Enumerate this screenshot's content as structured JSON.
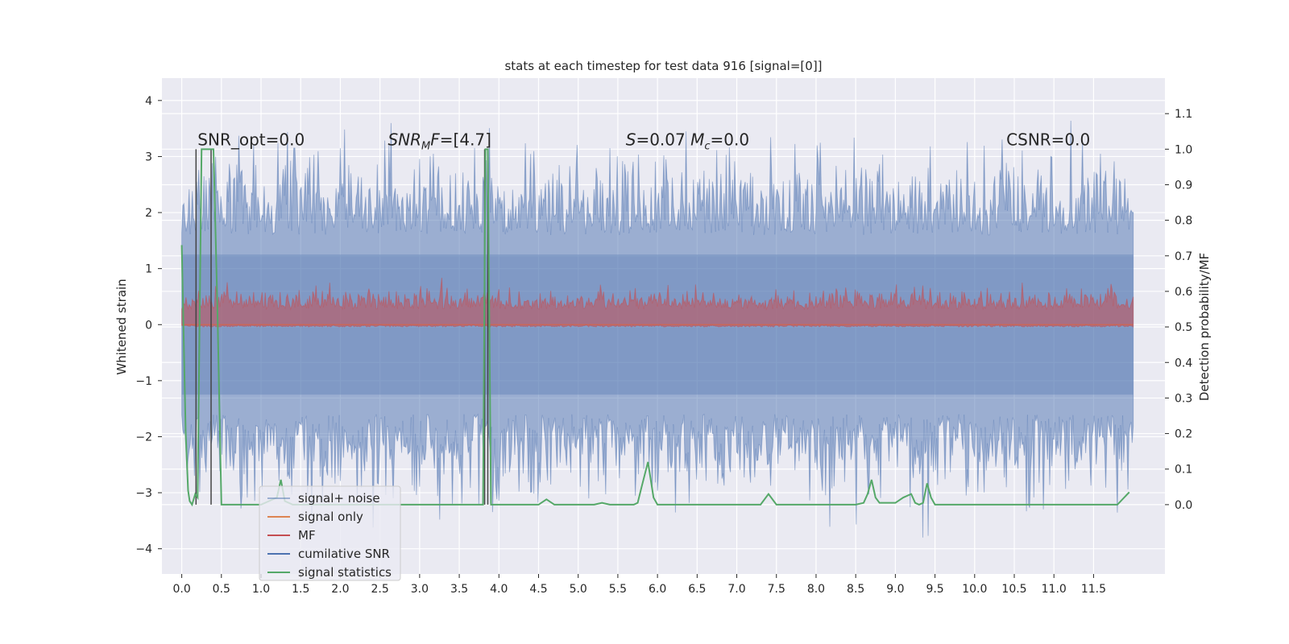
{
  "chart_data": {
    "type": "line",
    "title": "stats at each timestep for test data 916 [signal=[0]]",
    "ylabel": "Whitened strain",
    "y2label": "Detection probability/MF",
    "xlim": [
      -0.25,
      12.4
    ],
    "ylim": [
      -4.45,
      4.4
    ],
    "y2lim": [
      -0.195,
      1.2
    ],
    "xticks": [
      "0.0",
      "0.5",
      "1.0",
      "1.5",
      "2.0",
      "2.5",
      "3.0",
      "3.5",
      "4.0",
      "4.5",
      "5.0",
      "5.5",
      "6.0",
      "6.5",
      "7.0",
      "7.5",
      "8.0",
      "8.5",
      "9.0",
      "9.5",
      "10.0",
      "10.5",
      "11.0",
      "11.5"
    ],
    "yticks": [
      "−4",
      "−3",
      "−2",
      "−1",
      "0",
      "1",
      "2",
      "3",
      "4"
    ],
    "y2ticks": [
      "0.0",
      "0.1",
      "0.2",
      "0.3",
      "0.4",
      "0.5",
      "0.6",
      "0.7",
      "0.8",
      "0.9",
      "1.0",
      "1.1"
    ],
    "grid": true,
    "legend_position": "lower-left",
    "background": "#eaeaf2",
    "annotations": [
      {
        "text": "SNR_opt=0.0",
        "x": 0.2,
        "y": 3.2
      },
      {
        "text": "SNR_MF=[4.7]",
        "x": 2.6,
        "y": 3.2
      },
      {
        "text": "S=0.07   M_c=0.0",
        "x": 5.6,
        "y": 3.2
      },
      {
        "text": "CSNR=0.0",
        "x": 10.4,
        "y": 3.2
      }
    ],
    "series": [
      {
        "name": "signal+ noise",
        "color": "#4c72b0",
        "envelope": {
          "x_start": 0.0,
          "x_end": 12.0,
          "typical_high": 1.3,
          "typical_low": -1.3,
          "max_peak": 4.0,
          "min_peak": -3.8
        }
      },
      {
        "name": "signal only",
        "color": "#dd8452",
        "values_note": "0"
      },
      {
        "name": "MF",
        "color": "#c44e52",
        "axis": "right",
        "envelope": {
          "typical_low": 0.5,
          "typical_high": 0.58,
          "max_peak": 0.67
        }
      },
      {
        "name": "cumilative SNR",
        "color": "#4c72b0",
        "values_note": "not visible"
      },
      {
        "name": "signal statistics",
        "color": "#55a868",
        "axis": "right",
        "x": [
          0.0,
          0.05,
          0.08,
          0.1,
          0.13,
          0.17,
          0.2,
          0.25,
          0.3,
          0.4,
          0.45,
          0.5,
          0.55,
          0.6,
          0.7,
          0.8,
          0.9,
          1.0,
          1.1,
          1.2,
          1.25,
          1.3,
          1.4,
          1.5,
          2.0,
          2.5,
          3.0,
          3.2,
          3.3,
          3.5,
          3.8,
          3.83,
          3.86,
          3.9,
          4.0,
          4.5,
          4.6,
          4.7,
          5.0,
          5.2,
          5.3,
          5.4,
          5.6,
          5.7,
          5.75,
          5.8,
          5.88,
          5.95,
          6.0,
          6.5,
          7.0,
          7.3,
          7.4,
          7.5,
          7.6,
          8.0,
          8.5,
          8.6,
          8.65,
          8.7,
          8.75,
          8.8,
          9.0,
          9.1,
          9.2,
          9.25,
          9.3,
          9.35,
          9.4,
          9.45,
          9.5,
          9.55,
          10.0,
          10.5,
          11.0,
          11.5,
          11.8,
          11.95
        ],
        "y": [
          0.73,
          0.2,
          0.04,
          0.01,
          0.0,
          0.03,
          0.02,
          1.0,
          1.0,
          1.0,
          0.55,
          0.0,
          0.0,
          0.0,
          0.0,
          0.0,
          0.0,
          0.0,
          0.01,
          0.02,
          0.07,
          0.01,
          0.0,
          0.0,
          0.0,
          0.0,
          0.0,
          0.0,
          0.0,
          0.0,
          0.0,
          1.0,
          1.0,
          0.0,
          0.0,
          0.0,
          0.015,
          0.0,
          0.0,
          0.0,
          0.005,
          0.0,
          0.0,
          0.0,
          0.005,
          0.05,
          0.12,
          0.02,
          0.0,
          0.0,
          0.0,
          0.0,
          0.03,
          0.0,
          0.0,
          0.0,
          0.0,
          0.005,
          0.03,
          0.07,
          0.02,
          0.005,
          0.005,
          0.02,
          0.03,
          0.005,
          0.0,
          0.005,
          0.06,
          0.02,
          0.0,
          0.0,
          0.0,
          0.0,
          0.0,
          0.0,
          0.0,
          0.035
        ]
      },
      {
        "name": "vertical markers",
        "color": "#444444",
        "x": [
          0.18,
          0.37,
          3.82,
          3.86
        ]
      }
    ]
  }
}
